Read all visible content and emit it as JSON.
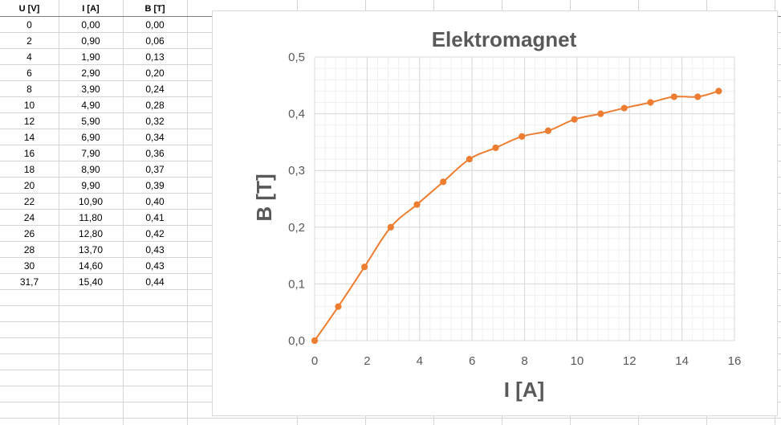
{
  "table": {
    "headers": [
      "U [V]",
      "I [A]",
      "B [T]"
    ],
    "rows": [
      [
        "0",
        "0,00",
        "0,00"
      ],
      [
        "2",
        "0,90",
        "0,06"
      ],
      [
        "4",
        "1,90",
        "0,13"
      ],
      [
        "6",
        "2,90",
        "0,20"
      ],
      [
        "8",
        "3,90",
        "0,24"
      ],
      [
        "10",
        "4,90",
        "0,28"
      ],
      [
        "12",
        "5,90",
        "0,32"
      ],
      [
        "14",
        "6,90",
        "0,34"
      ],
      [
        "16",
        "7,90",
        "0,36"
      ],
      [
        "18",
        "8,90",
        "0,37"
      ],
      [
        "20",
        "9,90",
        "0,39"
      ],
      [
        "22",
        "10,90",
        "0,40"
      ],
      [
        "24",
        "11,80",
        "0,41"
      ],
      [
        "26",
        "12,80",
        "0,42"
      ],
      [
        "28",
        "13,70",
        "0,43"
      ],
      [
        "30",
        "14,60",
        "0,43"
      ],
      [
        "31,7",
        "15,40",
        "0,44"
      ]
    ]
  },
  "chart_data": {
    "type": "line",
    "title": "Elektromagnet",
    "xlabel": "I [A]",
    "ylabel": "B [T]",
    "xlim": [
      0,
      16
    ],
    "ylim": [
      0,
      0.5
    ],
    "x_ticks": [
      "0",
      "2",
      "4",
      "6",
      "8",
      "10",
      "12",
      "14",
      "16"
    ],
    "y_ticks": [
      "0,0",
      "0,1",
      "0,2",
      "0,3",
      "0,4",
      "0,5"
    ],
    "grid": "major and minor",
    "legend": "none",
    "smooth": true,
    "series": [
      {
        "color": "#ED7D31",
        "x": [
          0,
          0.9,
          1.9,
          2.9,
          3.9,
          4.9,
          5.9,
          6.9,
          7.9,
          8.9,
          9.9,
          10.9,
          11.8,
          12.8,
          13.7,
          14.6,
          15.4
        ],
        "y": [
          0,
          0.06,
          0.13,
          0.2,
          0.24,
          0.28,
          0.32,
          0.34,
          0.36,
          0.37,
          0.39,
          0.4,
          0.41,
          0.42,
          0.43,
          0.43,
          0.44
        ]
      }
    ]
  }
}
